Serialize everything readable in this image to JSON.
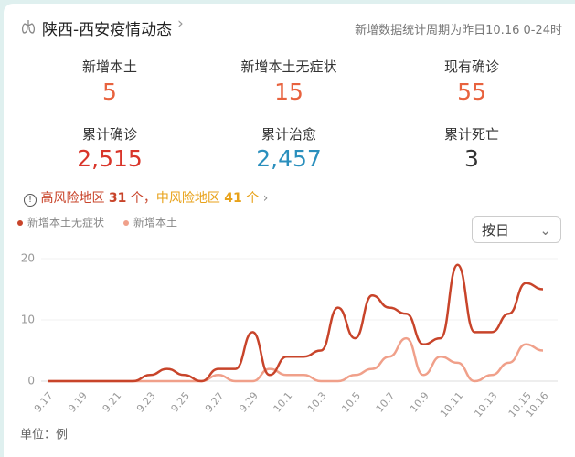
{
  "header": {
    "title": "陕西-西安疫情动态",
    "note": "新增数据统计周期为昨日10.16 0-24时"
  },
  "stats": [
    {
      "label": "新增本土",
      "value": "5"
    },
    {
      "label": "新增本土无症状",
      "value": "15"
    },
    {
      "label": "现有确诊",
      "value": "55"
    },
    {
      "label": "累计确诊",
      "value": "2,515"
    },
    {
      "label": "累计治愈",
      "value": "2,457"
    },
    {
      "label": "累计死亡",
      "value": "3"
    }
  ],
  "risk": {
    "high_label": "高风险地区",
    "high_count": "31",
    "unit1": "个，",
    "mid_label": "中风险地区",
    "mid_count": "41",
    "unit2": "个"
  },
  "toggle": "按日",
  "unit_note": "单位：例",
  "chart_data": {
    "type": "line",
    "categories": [
      "9.17",
      null,
      "9.19",
      null,
      "9.21",
      null,
      "9.23",
      null,
      "9.25",
      null,
      "9.27",
      null,
      "9.29",
      null,
      "10.1",
      null,
      "10.3",
      null,
      "10.5",
      null,
      "10.7",
      null,
      "10.9",
      null,
      "10.11",
      null,
      "10.13",
      null,
      "10.15",
      "10.16"
    ],
    "series": [
      {
        "name": "新增本土无症状",
        "color": "#c8442a",
        "values": [
          0,
          0,
          0,
          0,
          0,
          0,
          1,
          2,
          1,
          0,
          2,
          2,
          8,
          1,
          4,
          4,
          5,
          12,
          7,
          14,
          12,
          11,
          6,
          7,
          19,
          8,
          8,
          11,
          16,
          15
        ]
      },
      {
        "name": "新增本土",
        "color": "#f0a08a",
        "values": [
          0,
          0,
          0,
          0,
          0,
          0,
          0,
          0,
          0,
          0,
          1,
          0,
          0,
          2,
          1,
          1,
          0,
          0,
          1,
          2,
          4,
          7,
          1,
          4,
          3,
          0,
          1,
          3,
          6,
          5
        ]
      }
    ],
    "ylim": [
      0,
      20
    ],
    "yticks": [
      0,
      10,
      20
    ],
    "grid": true
  }
}
